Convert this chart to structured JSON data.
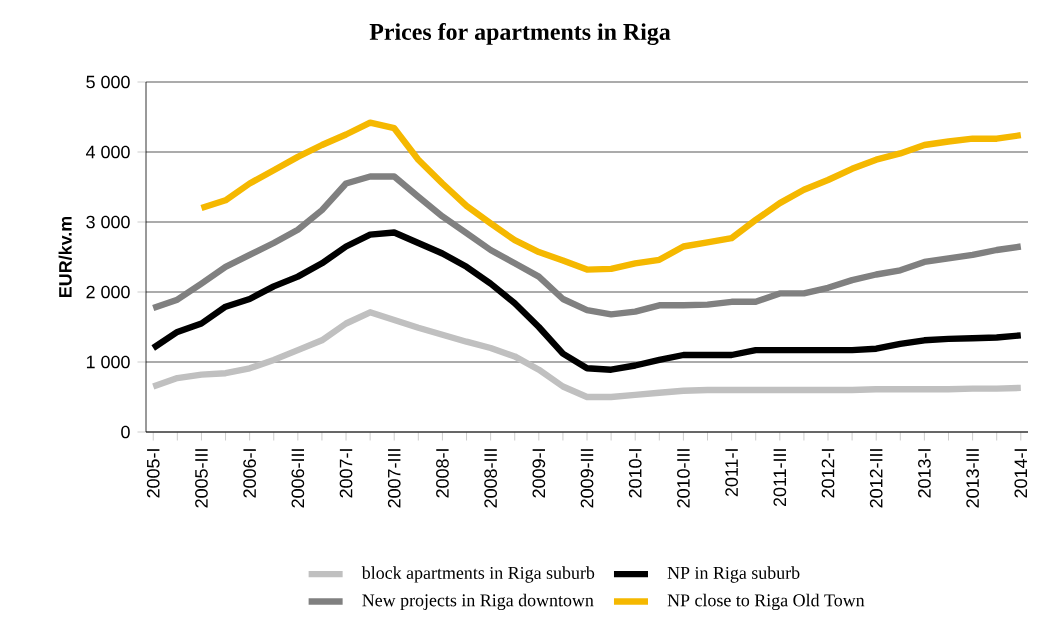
{
  "chart_data": {
    "type": "line",
    "title": "Prices for apartments in Riga",
    "ylabel": "EUR/kv.m",
    "categories": [
      "2005-I",
      null,
      "2005-III",
      null,
      "2006-I",
      null,
      "2006-III",
      null,
      "2007-I",
      null,
      "2007-III",
      null,
      "2008-I",
      null,
      "2008-III",
      null,
      "2009-I",
      null,
      "2009-III",
      null,
      "2010-I",
      null,
      "2010-III",
      null,
      "2011-I",
      null,
      "2011-III",
      null,
      "2012-I",
      null,
      "2012-III",
      null,
      "2013-I",
      null,
      "2013-III",
      null,
      "2014-I"
    ],
    "series": [
      {
        "name": "block apartments in Riga suburb",
        "color": "#c0c0c0",
        "values": [
          650,
          770,
          820,
          840,
          910,
          1030,
          1170,
          1310,
          1550,
          1710,
          1600,
          1490,
          1390,
          1290,
          1200,
          1080,
          890,
          650,
          500,
          500,
          530,
          560,
          590,
          600,
          600,
          600,
          600,
          600,
          600,
          600,
          610,
          610,
          610,
          610,
          620,
          620,
          630
        ]
      },
      {
        "name": "NP in Riga suburb",
        "color": "#000000",
        "values": [
          1200,
          1430,
          1550,
          1790,
          1900,
          2080,
          2220,
          2410,
          2650,
          2820,
          2850,
          2700,
          2550,
          2360,
          2120,
          1840,
          1500,
          1120,
          910,
          890,
          950,
          1030,
          1100,
          1100,
          1100,
          1170,
          1170,
          1170,
          1170,
          1170,
          1190,
          1260,
          1310,
          1330,
          1340,
          1350,
          1380
        ]
      },
      {
        "name": "New projects in Riga downtown",
        "color": "#808080",
        "values": [
          1770,
          1890,
          2120,
          2360,
          2530,
          2700,
          2890,
          3170,
          3550,
          3650,
          3650,
          3360,
          3080,
          2840,
          2600,
          2410,
          2220,
          1900,
          1740,
          1680,
          1720,
          1810,
          1810,
          1820,
          1860,
          1860,
          1980,
          1980,
          2060,
          2170,
          2250,
          2310,
          2430,
          2480,
          2530,
          2600,
          2650
        ]
      },
      {
        "name": "NP close to Riga Old Town",
        "color": "#f5b800",
        "values": [
          null,
          null,
          3200,
          3310,
          3550,
          3740,
          3930,
          4100,
          4250,
          4420,
          4340,
          3890,
          3550,
          3230,
          2980,
          2740,
          2570,
          2450,
          2320,
          2330,
          2410,
          2460,
          2650,
          2710,
          2770,
          3030,
          3270,
          3460,
          3600,
          3760,
          3890,
          3980,
          4100,
          4150,
          4190,
          4190,
          4240
        ]
      }
    ],
    "ylim": [
      0,
      5000
    ],
    "yticks": [
      0,
      {
        "value": 1000,
        "label": "1 000"
      },
      {
        "value": 2000,
        "label": "2 000"
      },
      {
        "value": 3000,
        "label": "3 000"
      },
      {
        "value": 4000,
        "label": "4 000"
      },
      {
        "value": 5000,
        "label": "5 000"
      }
    ],
    "grid": "y",
    "legend": "bottom",
    "marker": "none",
    "line_style": "solid"
  }
}
